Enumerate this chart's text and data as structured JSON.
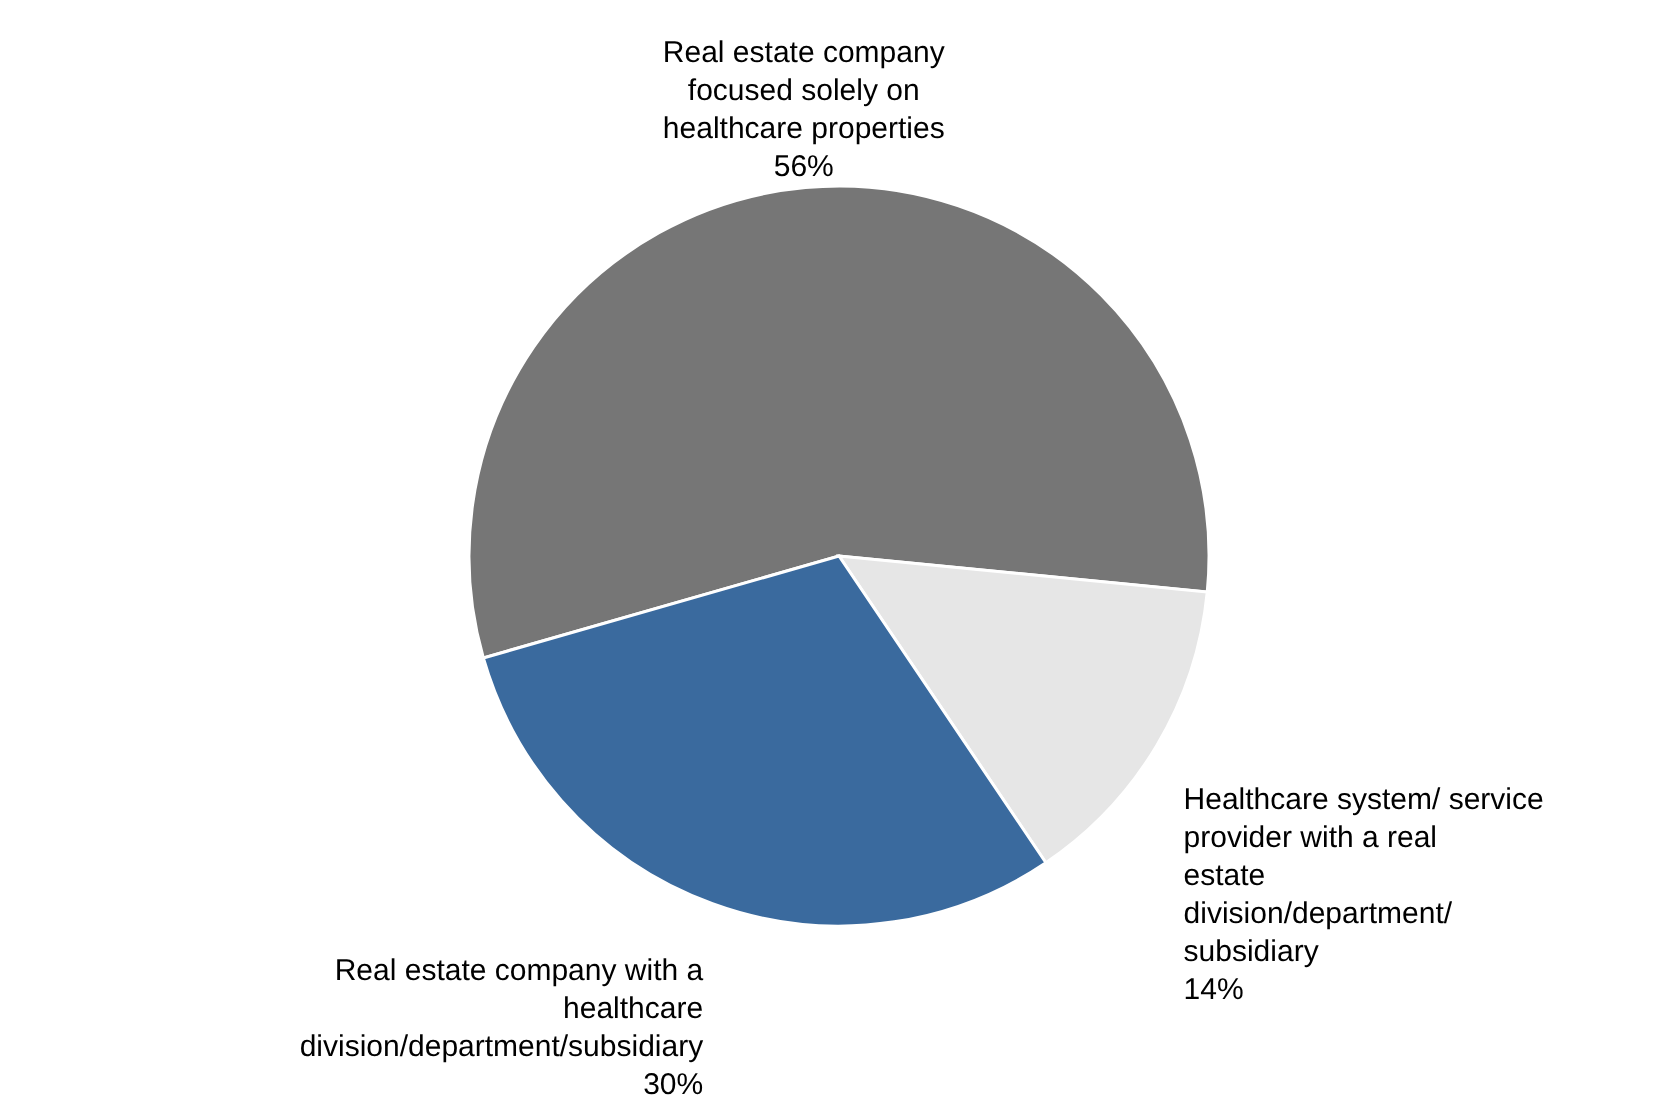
{
  "chart_data": {
    "type": "pie",
    "categories": [
      "Real estate company focused solely on healthcare properties",
      "Healthcare system/ service provider with a real estate division/department/ subsidiary",
      "Real estate company with a healthcare division/department/subsidiary"
    ],
    "values": [
      56,
      14,
      30
    ],
    "value_labels": [
      "56%",
      "14%",
      "30%"
    ],
    "colors": [
      "#767676",
      "#e6e6e6",
      "#3a6a9e"
    ]
  }
}
